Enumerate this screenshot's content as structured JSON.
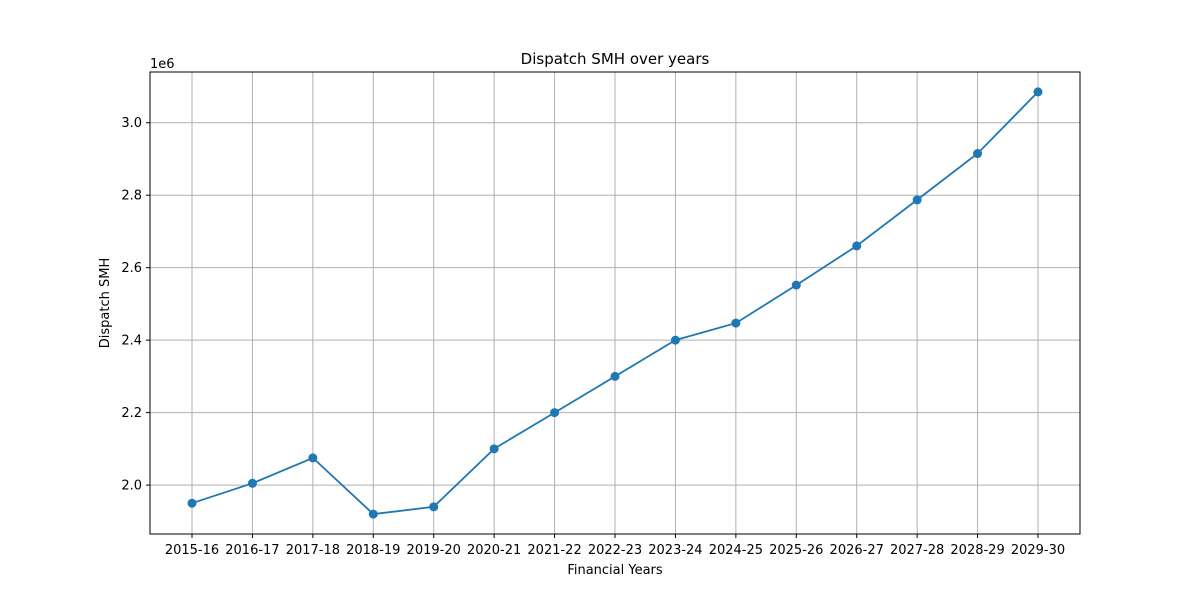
{
  "chart_data": {
    "type": "line",
    "title": "Dispatch SMH over years",
    "xlabel": "Financial Years",
    "ylabel": "Dispatch SMH",
    "y_offset_label": "1e6",
    "categories": [
      "2015-16",
      "2016-17",
      "2017-18",
      "2018-19",
      "2019-20",
      "2020-21",
      "2021-22",
      "2022-23",
      "2023-24",
      "2024-25",
      "2025-26",
      "2026-27",
      "2027-28",
      "2028-29",
      "2029-30"
    ],
    "series": [
      {
        "values": [
          1950000,
          2005000,
          2075000,
          1920000,
          1940000,
          2100000,
          2200000,
          2300000,
          2400000,
          2447000,
          2552000,
          2660000,
          2787000,
          2915000,
          3085000
        ],
        "color": "#1f77b4",
        "marker": "circle"
      }
    ],
    "ylim": [
      1865000,
      3140000
    ],
    "yticks": [
      2000000,
      2200000,
      2400000,
      2600000,
      2800000,
      3000000
    ],
    "ytick_labels": [
      "2.0",
      "2.2",
      "2.4",
      "2.6",
      "2.8",
      "3.0"
    ],
    "grid": true
  }
}
